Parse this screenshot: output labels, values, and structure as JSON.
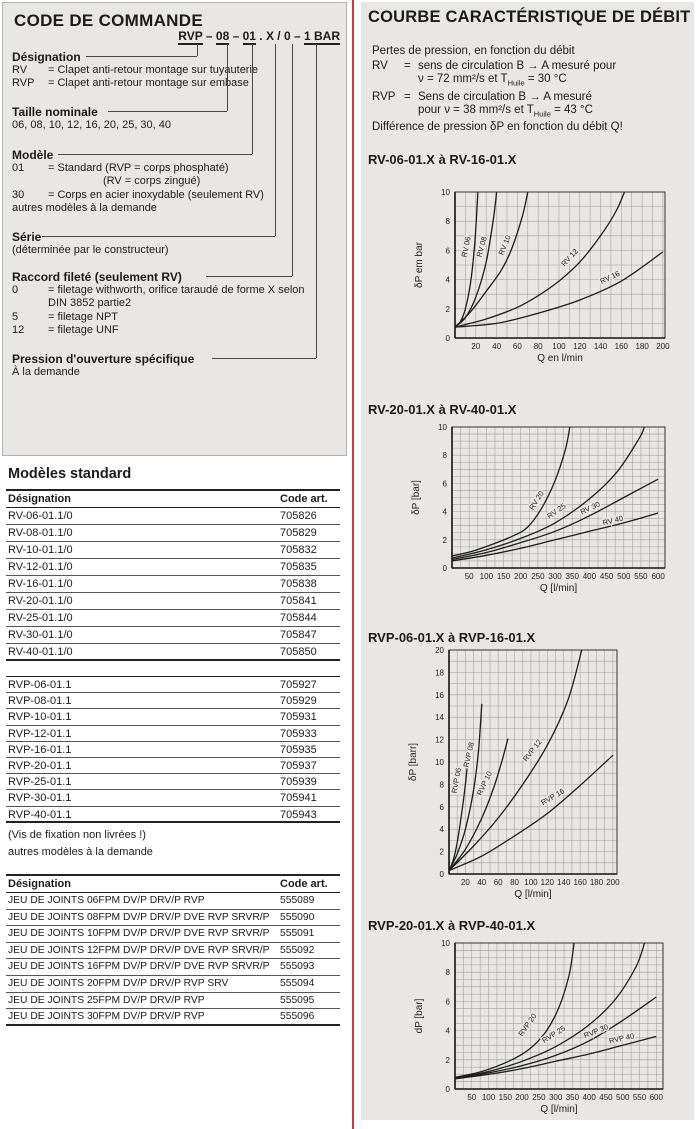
{
  "page": {
    "bg": "#ffffff",
    "panel_bg": "#e8e7e5",
    "divider_color": "#c93b38",
    "text_color": "#1b1b1b"
  },
  "left": {
    "title": "CODE DE COMMANDE",
    "code_parts": [
      {
        "t": "RVP",
        "u": true
      },
      {
        "t": " – ",
        "u": false
      },
      {
        "t": "08",
        "u": true
      },
      {
        "t": " – ",
        "u": false
      },
      {
        "t": "01",
        "u": true
      },
      {
        "t": " . X / 0 – ",
        "u": false
      },
      {
        "t": "1 BAR",
        "u": true
      }
    ],
    "sections": [
      {
        "label": "Désignation",
        "lines": [
          {
            "c1": "RV",
            "c2": "= Clapet anti-retour montage sur tuyauterie"
          },
          {
            "c1": "RVP",
            "c2": "= Clapet anti-retour montage sur embase"
          }
        ]
      },
      {
        "label": "Taille nominale",
        "lines": [
          {
            "c2": "06, 08, 10, 12, 16, 20, 25, 30, 40"
          }
        ]
      },
      {
        "label": "Modèle",
        "lines": [
          {
            "c1": "01",
            "c2": "= Standard    (RVP = corps phosphaté)"
          },
          {
            "c2": "(RV = corps zingué)",
            "ind": 2
          },
          {
            "c1": "30",
            "c2": "= Corps en acier inoxydable (seulement RV)"
          },
          {
            "c2": "autres modèles à la demande"
          }
        ]
      },
      {
        "label": "Série",
        "lines": [
          {
            "c2": "(déterminée par le constructeur)"
          }
        ]
      },
      {
        "label": "Raccord fileté (seulement RV)",
        "lines": [
          {
            "c1": "0",
            "c2": "= filetage withworth, orifice taraudé de forme X selon"
          },
          {
            "c2": "DIN 3852 partie2",
            "ind": 1
          },
          {
            "c1": "5",
            "c2": "= filetage NPT"
          },
          {
            "c1": "12",
            "c2": "= filetage UNF"
          }
        ]
      },
      {
        "label": "Pression d'ouverture spécifique",
        "lines": [
          {
            "c2": "À la demande"
          }
        ]
      }
    ],
    "models_title": "Modèles standard",
    "table_headers": {
      "designation": "Désignation",
      "code": "Code art."
    },
    "rv_rows": [
      [
        "RV-06-01.1/0",
        "705826"
      ],
      [
        "RV-08-01.1/0",
        "705829"
      ],
      [
        "RV-10-01.1/0",
        "705832"
      ],
      [
        "RV-12-01.1/0",
        "705835"
      ],
      [
        "RV-16-01.1/0",
        "705838"
      ],
      [
        "RV-20-01.1/0",
        "705841"
      ],
      [
        "RV-25-01.1/0",
        "705844"
      ],
      [
        "RV-30-01.1/0",
        "705847"
      ],
      [
        "RV-40-01.1/0",
        "705850"
      ]
    ],
    "rvp_rows": [
      [
        "RVP-06-01.1",
        "705927"
      ],
      [
        "RVP-08-01.1",
        "705929"
      ],
      [
        "RVP-10-01.1",
        "705931"
      ],
      [
        "RVP-12-01.1",
        "705933"
      ],
      [
        "RVP-16-01.1",
        "705935"
      ],
      [
        "RVP-20-01.1",
        "705937"
      ],
      [
        "RVP-25-01.1",
        "705939"
      ],
      [
        "RVP-30-01.1",
        "705941"
      ],
      [
        "RVP-40-01.1",
        "705943"
      ]
    ],
    "notes": [
      "(Vis de fixation non livrées !)",
      "autres modèles à la demande"
    ],
    "seal_rows": [
      [
        "JEU DE JOINTS 06FPM DV/P DRV/P RVP",
        "555089"
      ],
      [
        "JEU DE JOINTS 08FPM DV/P DRV/P DVE RVP SRVR/P",
        "555090"
      ],
      [
        "JEU DE JOINTS 10FPM DV/P DRV/P DVE RVP SRVR/P",
        "555091"
      ],
      [
        "JEU DE JOINTS 12FPM DV/P DRV/P DVE RVP SRVR/P",
        "555092"
      ],
      [
        "JEU DE JOINTS 16FPM DV/P DRV/P DVE RVP SRVR/P",
        "555093"
      ],
      [
        "JEU DE JOINTS 20FPM DV/P DRV/P RVP SRV",
        "555094"
      ],
      [
        "JEU DE JOINTS 25FPM DV/P DRV/P RVP",
        "555095"
      ],
      [
        "JEU DE JOINTS 30FPM DV/P DRV/P RVP",
        "555096"
      ]
    ]
  },
  "right": {
    "title": "COURBE CARACTÉRISTIQUE DE DÉBIT",
    "intro_line": "Pertes de pression, en fonction du débit",
    "rv_def": {
      "term": "RV",
      "eq": "=",
      "line1": "sens de circulation B → A mesuré pour",
      "t_pre": "ν = 72 mm²/s et T",
      "t_sub": "Huile",
      "t_post": " = 30 °C"
    },
    "rvp_def": {
      "term": "RVP",
      "eq": "=",
      "line1": "Sens de circulation B → A mesuré",
      "t_pre": "pour ν = 38 mm²/s et T",
      "t_sub": "Huile",
      "t_post": " = 43 °C"
    },
    "outro_line": "Différence de pression δP en fonction du débit Q!"
  },
  "chart_data": [
    {
      "type": "line",
      "title": "RV-06-01.X à RV-16-01.X",
      "xlabel": "Q en l/min",
      "ylabel": "δP em bar",
      "xlim": [
        0,
        202
      ],
      "ylim": [
        0,
        10
      ],
      "grid": true,
      "xticks": [
        20,
        40,
        60,
        80,
        100,
        120,
        140,
        160,
        180,
        200
      ],
      "yticks": [
        0,
        2,
        4,
        6,
        8,
        10
      ],
      "xgrid": 10,
      "ygrid": 1,
      "series": [
        {
          "name": "RV 06",
          "points": [
            [
              0,
              0.75
            ],
            [
              5,
              1.1
            ],
            [
              10,
              2.0
            ],
            [
              15,
              3.8
            ],
            [
              19,
              6.5
            ],
            [
              22,
              10
            ]
          ],
          "label": {
            "x": 13,
            "y": 6.2,
            "angle": -78
          }
        },
        {
          "name": "RV 08",
          "points": [
            [
              0,
              0.75
            ],
            [
              10,
              1.4
            ],
            [
              20,
              2.8
            ],
            [
              30,
              5.2
            ],
            [
              37,
              8.2
            ],
            [
              40,
              10
            ]
          ],
          "label": {
            "x": 28,
            "y": 6.2,
            "angle": -75
          }
        },
        {
          "name": "RV 10",
          "points": [
            [
              0,
              0.75
            ],
            [
              15,
              1.8
            ],
            [
              30,
              3.2
            ],
            [
              45,
              4.7
            ],
            [
              55,
              6.2
            ],
            [
              65,
              8.4
            ],
            [
              70,
              10
            ]
          ],
          "label": {
            "x": 50,
            "y": 6.3,
            "angle": -68
          }
        },
        {
          "name": "RV 12",
          "points": [
            [
              0,
              0.75
            ],
            [
              30,
              1.3
            ],
            [
              60,
              2.1
            ],
            [
              80,
              2.9
            ],
            [
              100,
              3.9
            ],
            [
              120,
              5.2
            ],
            [
              140,
              7.0
            ],
            [
              155,
              8.7
            ],
            [
              163,
              10
            ]
          ],
          "label": {
            "x": 112,
            "y": 5.4,
            "angle": -48
          }
        },
        {
          "name": "RV 16",
          "points": [
            [
              0,
              0.75
            ],
            [
              40,
              1.0
            ],
            [
              80,
              1.7
            ],
            [
              120,
              2.6
            ],
            [
              160,
              3.9
            ],
            [
              200,
              5.9
            ]
          ],
          "label": {
            "x": 150,
            "y": 4.0,
            "angle": -25
          }
        }
      ]
    },
    {
      "type": "line",
      "title": "RV-20-01.X à RV-40-01.X",
      "xlabel": "Q [l/min]",
      "ylabel": "δP [bar]",
      "xlim": [
        0,
        620
      ],
      "ylim": [
        0,
        10
      ],
      "grid": true,
      "xticks": [
        50,
        100,
        150,
        200,
        250,
        300,
        350,
        400,
        450,
        500,
        550,
        600
      ],
      "yticks": [
        0,
        2,
        4,
        6,
        8,
        10
      ],
      "xgrid": 25,
      "ygrid": 0.5,
      "series": [
        {
          "name": "RV 20",
          "points": [
            [
              0,
              0.85
            ],
            [
              60,
              1.2
            ],
            [
              120,
              1.7
            ],
            [
              180,
              2.3
            ],
            [
              220,
              2.9
            ],
            [
              260,
              4.2
            ],
            [
              300,
              6.2
            ],
            [
              330,
              8.4
            ],
            [
              343,
              10
            ]
          ],
          "label": {
            "x": 252,
            "y": 4.7,
            "angle": -58
          }
        },
        {
          "name": "RV 25",
          "points": [
            [
              0,
              0.7
            ],
            [
              100,
              1.3
            ],
            [
              200,
              2.1
            ],
            [
              300,
              3.2
            ],
            [
              400,
              4.9
            ],
            [
              480,
              6.8
            ],
            [
              545,
              9.2
            ],
            [
              560,
              10
            ]
          ],
          "label": {
            "x": 308,
            "y": 3.9,
            "angle": -35
          }
        },
        {
          "name": "RV 30",
          "points": [
            [
              0,
              0.6
            ],
            [
              100,
              1.1
            ],
            [
              200,
              1.8
            ],
            [
              300,
              2.6
            ],
            [
              400,
              3.7
            ],
            [
              500,
              5.0
            ],
            [
              600,
              6.3
            ]
          ],
          "label": {
            "x": 405,
            "y": 4.1,
            "angle": -25
          }
        },
        {
          "name": "RV 40",
          "points": [
            [
              0,
              0.5
            ],
            [
              100,
              0.9
            ],
            [
              200,
              1.4
            ],
            [
              300,
              2.0
            ],
            [
              400,
              2.6
            ],
            [
              500,
              3.2
            ],
            [
              600,
              3.9
            ]
          ],
          "label": {
            "x": 470,
            "y": 3.2,
            "angle": -14
          }
        }
      ]
    },
    {
      "type": "line",
      "title": "RVP-06-01.X à RVP-16-01.X",
      "xlabel": "Q [l/min]",
      "ylabel": "δP [barr]",
      "xlim": [
        0,
        205
      ],
      "ylim": [
        0,
        20
      ],
      "grid": true,
      "xticks": [
        20,
        40,
        60,
        80,
        100,
        120,
        140,
        160,
        180,
        200
      ],
      "yticks": [
        0,
        2,
        4,
        6,
        8,
        10,
        12,
        14,
        16,
        18,
        20
      ],
      "xgrid": 10,
      "ygrid": 1,
      "series": [
        {
          "name": "RVP 06",
          "points": [
            [
              0,
              0.3
            ],
            [
              5,
              1.2
            ],
            [
              10,
              2.8
            ],
            [
              15,
              5.2
            ],
            [
              20,
              8.0
            ],
            [
              23,
              10.2
            ]
          ],
          "label": {
            "x": 12,
            "y": 8.3,
            "angle": -80
          }
        },
        {
          "name": "RVP 08",
          "points": [
            [
              0,
              0.3
            ],
            [
              10,
              1.8
            ],
            [
              20,
              4.0
            ],
            [
              30,
              7.5
            ],
            [
              36,
              11.0
            ],
            [
              40,
              15.2
            ]
          ],
          "label": {
            "x": 27,
            "y": 10.6,
            "angle": -77
          }
        },
        {
          "name": "RVP 10",
          "points": [
            [
              0,
              0.3
            ],
            [
              20,
              2.2
            ],
            [
              40,
              5.0
            ],
            [
              55,
              7.8
            ],
            [
              65,
              10.2
            ],
            [
              72,
              12.1
            ]
          ],
          "label": {
            "x": 46,
            "y": 8.0,
            "angle": -65
          }
        },
        {
          "name": "RVP 12",
          "points": [
            [
              0,
              0.3
            ],
            [
              30,
              2.5
            ],
            [
              60,
              5.0
            ],
            [
              90,
              8.0
            ],
            [
              120,
              11.5
            ],
            [
              145,
              15.5
            ],
            [
              162,
              20
            ]
          ],
          "label": {
            "x": 104,
            "y": 10.9,
            "angle": -52
          }
        },
        {
          "name": "RVP 16",
          "points": [
            [
              0,
              0.3
            ],
            [
              40,
              1.6
            ],
            [
              80,
              3.4
            ],
            [
              120,
              5.4
            ],
            [
              160,
              7.9
            ],
            [
              200,
              10.6
            ]
          ],
          "label": {
            "x": 128,
            "y": 6.7,
            "angle": -30
          }
        }
      ]
    },
    {
      "type": "line",
      "title": "RVP-20-01.X à RVP-40-01.X",
      "xlabel": "Q [l/min]",
      "ylabel": "dP [bar]",
      "xlim": [
        0,
        620
      ],
      "ylim": [
        0,
        10
      ],
      "grid": true,
      "xticks": [
        50,
        100,
        150,
        200,
        250,
        300,
        350,
        400,
        450,
        500,
        550,
        600
      ],
      "yticks": [
        0,
        2,
        4,
        6,
        8,
        10
      ],
      "xgrid": 25,
      "ygrid": 0.5,
      "series": [
        {
          "name": "RVP 20",
          "points": [
            [
              0,
              0.8
            ],
            [
              80,
              1.2
            ],
            [
              160,
              1.9
            ],
            [
              220,
              2.7
            ],
            [
              270,
              3.9
            ],
            [
              310,
              5.6
            ],
            [
              340,
              7.8
            ],
            [
              355,
              10
            ]
          ],
          "label": {
            "x": 222,
            "y": 4.3,
            "angle": -55
          }
        },
        {
          "name": "RVP 25",
          "points": [
            [
              0,
              0.75
            ],
            [
              100,
              1.2
            ],
            [
              200,
              1.9
            ],
            [
              300,
              2.9
            ],
            [
              400,
              4.4
            ],
            [
              480,
              6.2
            ],
            [
              540,
              8.4
            ],
            [
              565,
              10
            ]
          ],
          "label": {
            "x": 298,
            "y": 3.6,
            "angle": -32
          }
        },
        {
          "name": "RVP 30",
          "points": [
            [
              0,
              0.7
            ],
            [
              100,
              1.1
            ],
            [
              200,
              1.6
            ],
            [
              300,
              2.3
            ],
            [
              400,
              3.3
            ],
            [
              500,
              4.7
            ],
            [
              600,
              6.3
            ]
          ],
          "label": {
            "x": 423,
            "y": 3.8,
            "angle": -22
          }
        },
        {
          "name": "RVP 40",
          "points": [
            [
              0,
              0.7
            ],
            [
              100,
              1.0
            ],
            [
              200,
              1.4
            ],
            [
              300,
              1.9
            ],
            [
              400,
              2.4
            ],
            [
              500,
              3.0
            ],
            [
              600,
              3.6
            ]
          ],
          "label": {
            "x": 498,
            "y": 3.3,
            "angle": -12
          }
        }
      ]
    }
  ]
}
